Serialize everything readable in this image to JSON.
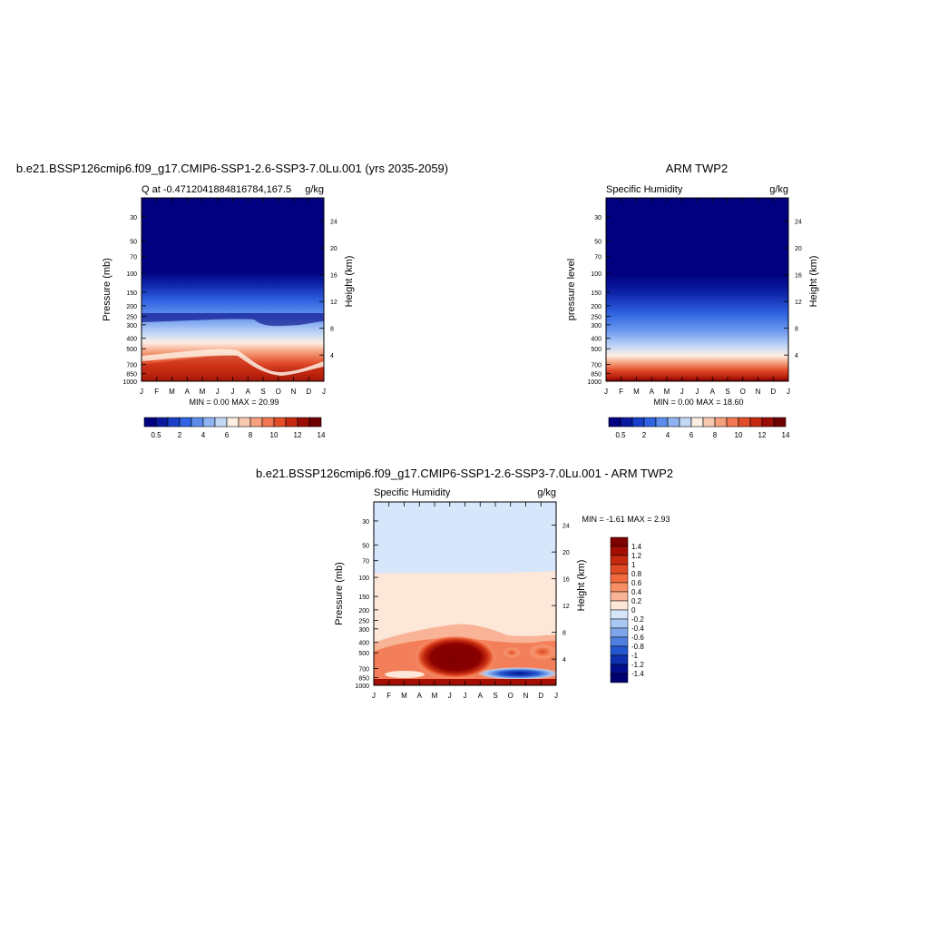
{
  "months": [
    "J",
    "F",
    "M",
    "A",
    "M",
    "J",
    "J",
    "A",
    "S",
    "O",
    "N",
    "D",
    "J"
  ],
  "pressure_ticks": [
    "30",
    "50",
    "70",
    "100",
    "150",
    "200",
    "250",
    "300",
    "400",
    "500",
    "700",
    "850",
    "1000"
  ],
  "height_ticks": [
    "4",
    "8",
    "12",
    "16",
    "20",
    "24"
  ],
  "panel_a": {
    "title": "b.e21.BSSP126cmip6.f09_g17.CMIP6-SSP1-2.6-SSP3-7.0Lu.001 (yrs 2035-2059)",
    "left_label": "Q at -0.4712041884816784,167.5",
    "right_label": "g/kg",
    "ylabel": "Pressure (mb)",
    "y2label": "Height (km)",
    "stats": "MIN =   0.00 MAX =  20.99"
  },
  "panel_b": {
    "title": "ARM TWP2",
    "left_label": "Specific Humidity",
    "right_label": "g/kg",
    "ylabel": "pressure level",
    "y2label": "Height (km)",
    "stats": "MIN =   0.00 MAX =  18.60"
  },
  "panel_c": {
    "title": "b.e21.BSSP126cmip6.f09_g17.CMIP6-SSP1-2.6-SSP3-7.0Lu.001 - ARM TWP2",
    "left_label": "Specific Humidity",
    "right_label": "g/kg",
    "ylabel": "Pressure (mb)",
    "y2label": "Height (km)",
    "stats": "MIN =  -1.61 MAX =   2.93"
  },
  "colorbar_ab": {
    "labels": [
      "0.5",
      "2",
      "4",
      "6",
      "8",
      "10",
      "12",
      "14"
    ],
    "colors": [
      "#000080",
      "#0a1a9e",
      "#1a3fc8",
      "#2f63e2",
      "#5b8cec",
      "#8fb3f2",
      "#c3d8f7",
      "#fdeee3",
      "#f9c9b0",
      "#f6a07e",
      "#f27650",
      "#e24d2a",
      "#c42a12",
      "#9a0d06",
      "#6e0000"
    ]
  },
  "colorbar_c": {
    "labels": [
      "1.4",
      "1.2",
      "1",
      "0.8",
      "0.6",
      "0.4",
      "0.2",
      "0",
      "-0.2",
      "-0.4",
      "-0.6",
      "-0.8",
      "-1",
      "-1.2",
      "-1.4"
    ],
    "colors": [
      "#7f0000",
      "#a30d02",
      "#c52a10",
      "#e04a24",
      "#f06a3e",
      "#f78f65",
      "#f9b396",
      "#fde7d8",
      "#d6e6fb",
      "#a9c8f2",
      "#7fa6ea",
      "#4f7fe0",
      "#2456d0",
      "#0d2fb0",
      "#020f8a",
      "#000070"
    ]
  },
  "chart_data": [
    {
      "type": "heatmap",
      "title": "b.e21.BSSP126cmip6.f09_g17.CMIP6-SSP1-2.6-SSP3-7.0Lu.001 (yrs 2035-2059)",
      "variable": "Q at -0.4712041884816784,167.5",
      "units": "g/kg",
      "xlabel": "",
      "x": [
        "J",
        "F",
        "M",
        "A",
        "M",
        "J",
        "J",
        "A",
        "S",
        "O",
        "N",
        "D",
        "J"
      ],
      "ylabel": "Pressure (mb)",
      "y2label": "Height (km)",
      "ylim": [
        1000,
        20
      ],
      "min": 0.0,
      "max": 20.99,
      "colorscale": "blue-white-red",
      "levels": [
        0.5,
        2,
        4,
        6,
        8,
        10,
        12,
        14
      ],
      "moisture_top_mb": [
        290,
        290,
        295,
        290,
        280,
        280,
        290,
        300,
        320,
        320,
        310,
        300,
        290
      ],
      "moist_layer_top_mb": [
        720,
        700,
        680,
        650,
        620,
        620,
        650,
        720,
        800,
        830,
        820,
        790,
        720
      ]
    },
    {
      "type": "heatmap",
      "title": "ARM TWP2",
      "variable": "Specific Humidity",
      "units": "g/kg",
      "xlabel": "",
      "x": [
        "J",
        "F",
        "M",
        "A",
        "M",
        "J",
        "J",
        "A",
        "S",
        "O",
        "N",
        "D",
        "J"
      ],
      "ylabel": "pressure level",
      "y2label": "Height (km)",
      "ylim": [
        1000,
        20
      ],
      "min": 0.0,
      "max": 18.6,
      "colorscale": "blue-white-red",
      "levels": [
        0.5,
        2,
        4,
        6,
        8,
        10,
        12,
        14
      ],
      "moisture_top_mb": [
        300,
        300,
        305,
        310,
        305,
        300,
        305,
        310,
        315,
        310,
        305,
        300,
        300
      ],
      "moist_layer_top_mb": [
        800,
        800,
        790,
        790,
        780,
        780,
        790,
        790,
        800,
        800,
        790,
        790,
        800
      ]
    },
    {
      "type": "heatmap",
      "title": "b.e21.BSSP126cmip6.f09_g17.CMIP6-SSP1-2.6-SSP3-7.0Lu.001 - ARM TWP2",
      "variable": "Specific Humidity",
      "units": "g/kg",
      "xlabel": "",
      "x": [
        "J",
        "F",
        "M",
        "A",
        "M",
        "J",
        "J",
        "A",
        "S",
        "O",
        "N",
        "D",
        "J"
      ],
      "ylabel": "Pressure (mb)",
      "y2label": "Height (km)",
      "ylim": [
        1000,
        20
      ],
      "min": -1.61,
      "max": 2.93,
      "colorscale": "blue-white-red diverging",
      "levels": [
        -1.4,
        -1.2,
        -1,
        -0.8,
        -0.6,
        -0.4,
        -0.2,
        0,
        0.2,
        0.4,
        0.6,
        0.8,
        1,
        1.2,
        1.4
      ],
      "features": [
        {
          "region": "above ~100 mb",
          "value_range": [
            -0.2,
            0
          ]
        },
        {
          "region": "100-300 mb",
          "value_range": [
            0,
            0.2
          ]
        },
        {
          "region": "May-Aug, 400-750 mb",
          "value": 1.4
        },
        {
          "region": "Sep-Dec, ~800 mb",
          "value": -1.4
        },
        {
          "region": "surface ~1000 mb",
          "value": 1.4
        }
      ]
    }
  ]
}
